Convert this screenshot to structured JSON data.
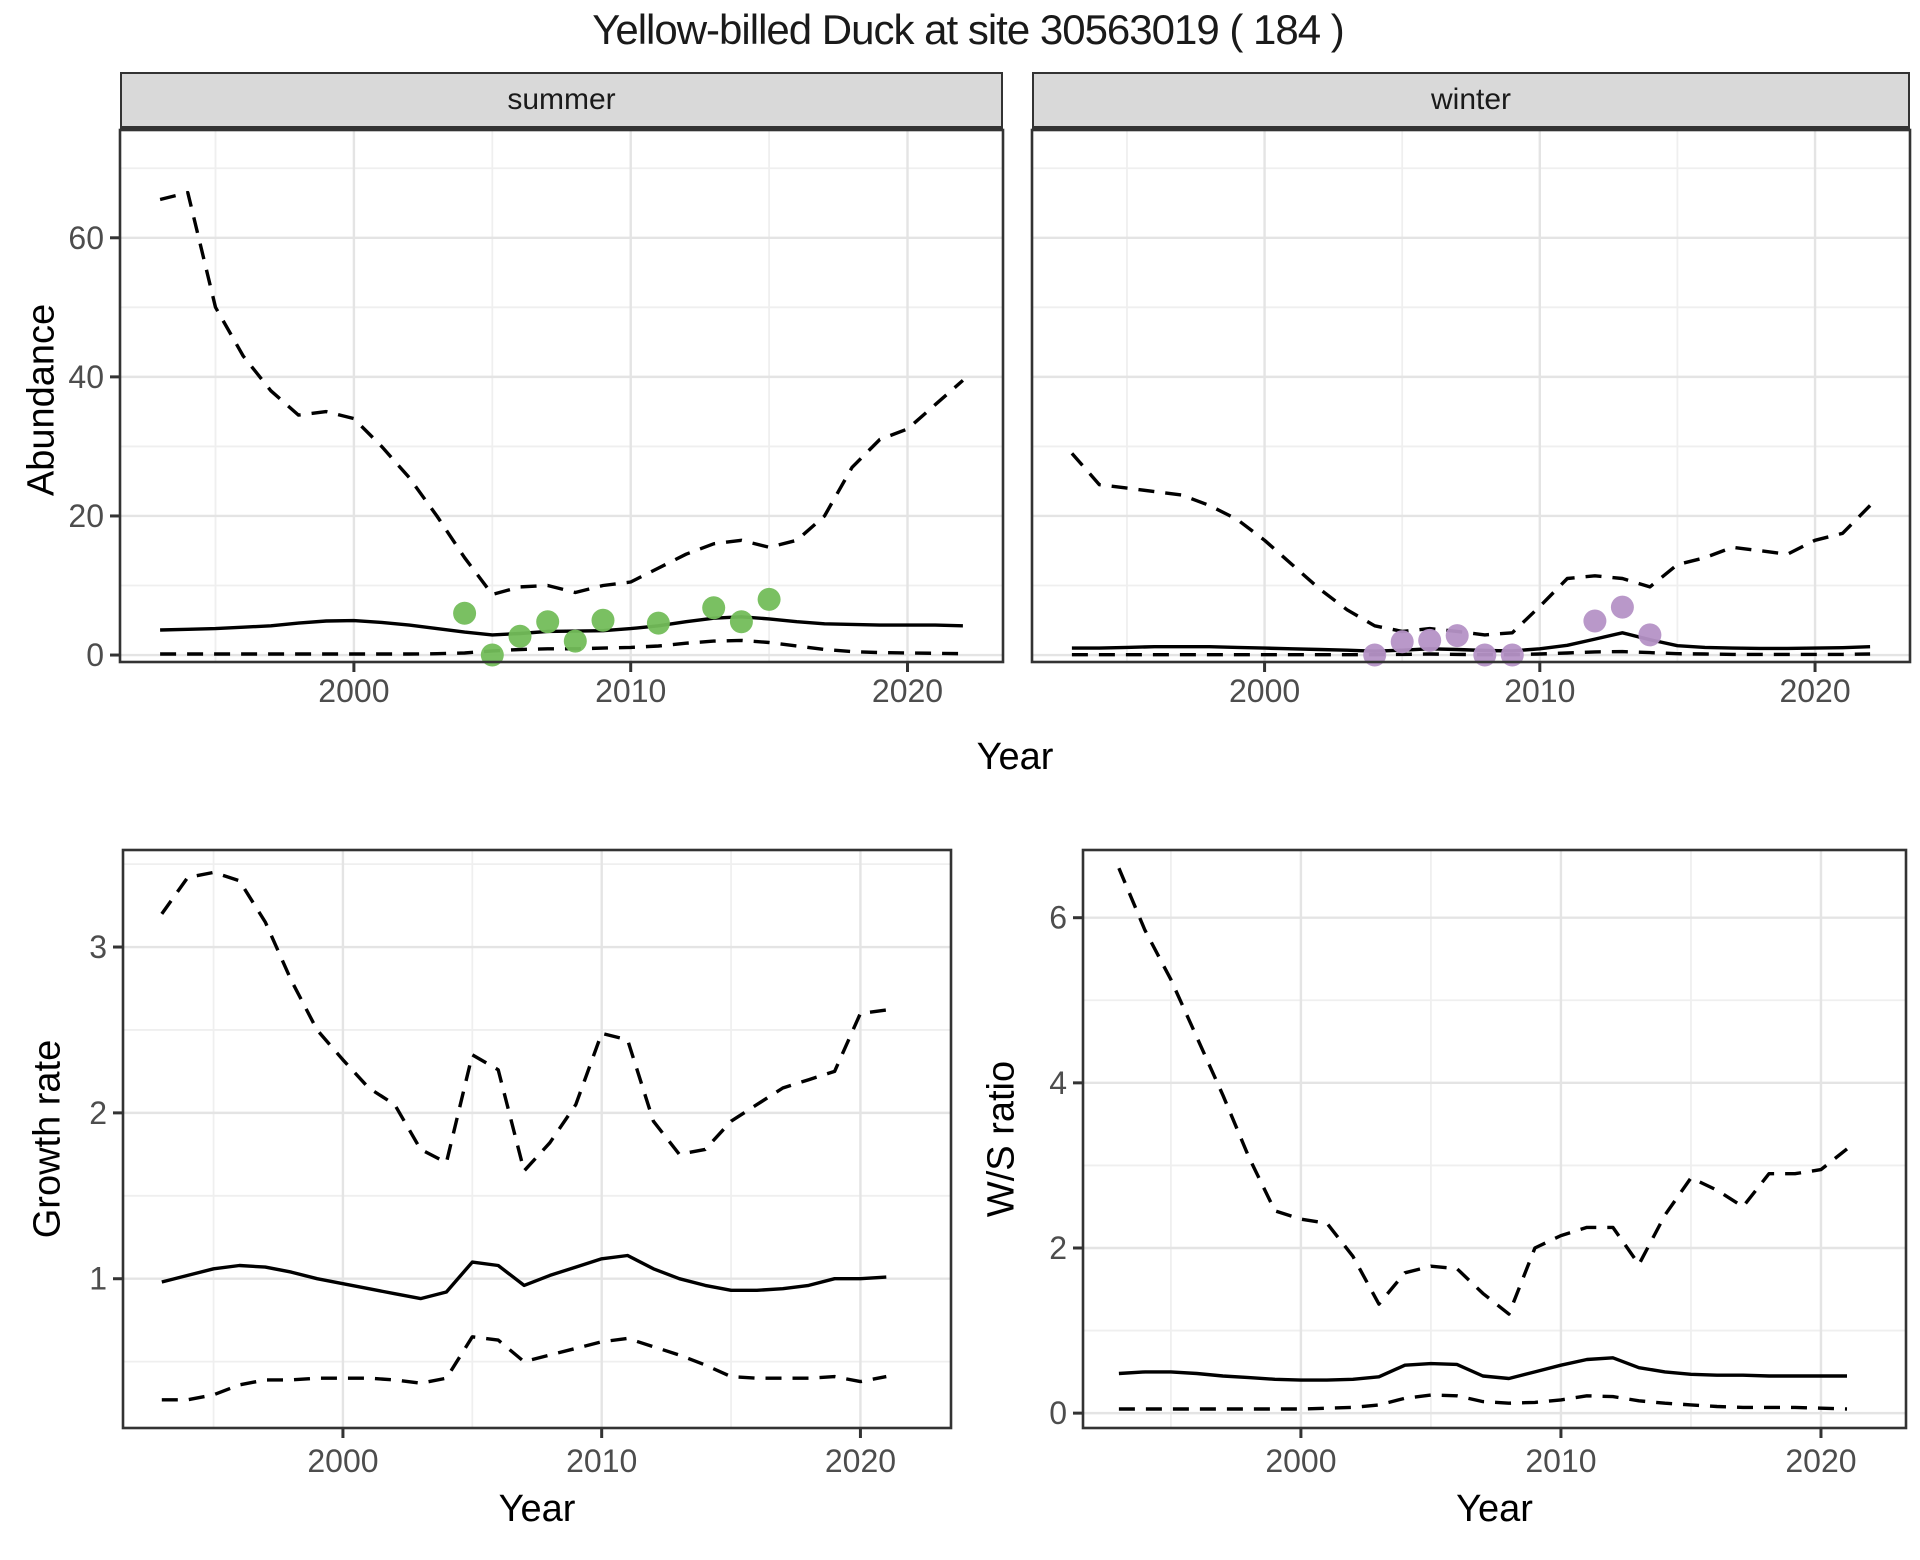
{
  "title": "Yellow-billed Duck at site 30563019 ( 184 )",
  "colors": {
    "background": "#ffffff",
    "line": "#000000",
    "grid_major": "#e4e4e4",
    "grid_minor": "#efefef",
    "strip_bg": "#d9d9d9",
    "panel_border": "#333333",
    "tick": "#333333",
    "tick_label": "#4d4d4d",
    "text": "#1a1a1a",
    "summer_point": "#73bd5a",
    "winter_point": "#b592c6"
  },
  "chart_data": [
    {
      "id": "abundance_summer",
      "type": "line",
      "facet_label": "summer",
      "xlabel": "Year",
      "ylabel": "Abundance",
      "legend_position": "none",
      "grid": true,
      "xlim": [
        1991.55,
        2023.45
      ],
      "ylim": [
        -1,
        75.5
      ],
      "x_major_ticks": [
        2000,
        2010,
        2020
      ],
      "x_minor_ticks": [
        1995,
        2005,
        2015
      ],
      "y_major_ticks": [
        0,
        20,
        40,
        60
      ],
      "y_minor_ticks": [
        10,
        30,
        50,
        70
      ],
      "x": [
        1993,
        1994,
        1995,
        1996,
        1997,
        1998,
        1999,
        2000,
        2001,
        2002,
        2003,
        2004,
        2005,
        2006,
        2007,
        2008,
        2009,
        2010,
        2011,
        2012,
        2013,
        2014,
        2015,
        2016,
        2017,
        2018,
        2019,
        2020,
        2021,
        2022
      ],
      "series": [
        {
          "name": "upper_ci",
          "style": "dashed",
          "values": [
            65.5,
            66.5,
            50,
            43,
            38,
            34.5,
            35,
            34,
            30,
            25.5,
            20,
            14,
            8.7,
            9.8,
            10,
            9,
            10,
            10.5,
            12.5,
            14.5,
            16,
            16.5,
            15.5,
            16.5,
            20,
            27,
            31,
            32.5,
            36,
            39.5
          ]
        },
        {
          "name": "mean",
          "style": "solid",
          "values": [
            3.6,
            3.7,
            3.8,
            4.0,
            4.2,
            4.6,
            4.9,
            4.95,
            4.7,
            4.3,
            3.8,
            3.3,
            2.9,
            3.1,
            3.4,
            3.45,
            3.5,
            3.8,
            4.2,
            4.8,
            5.3,
            5.5,
            5.2,
            4.8,
            4.5,
            4.4,
            4.3,
            4.3,
            4.3,
            4.2
          ]
        },
        {
          "name": "lower_ci",
          "style": "dashed",
          "values": [
            0.15,
            0.15,
            0.15,
            0.15,
            0.15,
            0.15,
            0.15,
            0.15,
            0.15,
            0.15,
            0.2,
            0.3,
            0.6,
            0.8,
            0.9,
            0.9,
            1.0,
            1.1,
            1.3,
            1.7,
            2.0,
            2.1,
            1.8,
            1.3,
            0.8,
            0.5,
            0.35,
            0.3,
            0.25,
            0.2
          ]
        }
      ],
      "points": {
        "name": "observed_counts",
        "color_key": "summer_point",
        "x": [
          2004,
          2005,
          2006,
          2007,
          2008,
          2009,
          2011,
          2013,
          2014,
          2015
        ],
        "y": [
          6,
          0,
          2.7,
          4.8,
          2,
          5,
          4.6,
          6.8,
          4.8,
          8
        ]
      }
    },
    {
      "id": "abundance_winter",
      "type": "line",
      "facet_label": "winter",
      "xlabel": "Year",
      "ylabel": "Abundance",
      "legend_position": "none",
      "grid": true,
      "xlim": [
        1991.55,
        2023.45
      ],
      "ylim": [
        -1,
        75.5
      ],
      "x_major_ticks": [
        2000,
        2010,
        2020
      ],
      "x_minor_ticks": [
        1995,
        2005,
        2015
      ],
      "y_major_ticks": [
        0,
        20,
        40,
        60
      ],
      "y_minor_ticks": [
        10,
        30,
        50,
        70
      ],
      "x": [
        1993,
        1994,
        1995,
        1996,
        1997,
        1998,
        1999,
        2000,
        2001,
        2002,
        2003,
        2004,
        2005,
        2006,
        2007,
        2008,
        2009,
        2010,
        2011,
        2012,
        2013,
        2014,
        2015,
        2016,
        2017,
        2018,
        2019,
        2020,
        2021,
        2022
      ],
      "series": [
        {
          "name": "upper_ci",
          "style": "dashed",
          "values": [
            29,
            24.5,
            24,
            23.5,
            23,
            21.5,
            19.5,
            16.5,
            13,
            9.5,
            6.5,
            4.2,
            3.4,
            3.8,
            3.4,
            2.9,
            3.2,
            7,
            11,
            11.4,
            11,
            9.8,
            13,
            14,
            15.5,
            15,
            14.5,
            16.5,
            17.5,
            21.5
          ]
        },
        {
          "name": "mean",
          "style": "solid",
          "values": [
            1.0,
            1.0,
            1.1,
            1.2,
            1.2,
            1.2,
            1.1,
            1.0,
            0.9,
            0.8,
            0.7,
            0.55,
            0.7,
            0.9,
            0.8,
            0.65,
            0.6,
            0.9,
            1.4,
            2.3,
            3.2,
            2.2,
            1.35,
            1.1,
            1.0,
            0.95,
            0.95,
            1.0,
            1.05,
            1.2
          ]
        },
        {
          "name": "lower_ci",
          "style": "dashed",
          "values": [
            0.05,
            0.05,
            0.05,
            0.05,
            0.05,
            0.05,
            0.05,
            0.05,
            0.05,
            0.05,
            0.05,
            0.05,
            0.1,
            0.15,
            0.1,
            0.05,
            0.05,
            0.15,
            0.3,
            0.45,
            0.5,
            0.35,
            0.2,
            0.15,
            0.1,
            0.1,
            0.1,
            0.1,
            0.1,
            0.15
          ]
        }
      ],
      "points": {
        "name": "observed_counts",
        "color_key": "winter_point",
        "x": [
          2004,
          2005,
          2006,
          2007,
          2008,
          2009,
          2012,
          2013,
          2014
        ],
        "y": [
          0,
          1.9,
          2.1,
          2.8,
          0,
          0,
          4.9,
          6.9,
          2.9
        ]
      }
    },
    {
      "id": "growth_rate",
      "type": "line",
      "facet_label": "",
      "xlabel": "Year",
      "ylabel": "Growth rate",
      "legend_position": "none",
      "grid": true,
      "xlim": [
        1991.5,
        2023.5
      ],
      "ylim": [
        0.1,
        3.585
      ],
      "x_major_ticks": [
        2000,
        2010,
        2020
      ],
      "x_minor_ticks": [
        1995,
        2005,
        2015
      ],
      "y_major_ticks": [
        1,
        2,
        3
      ],
      "y_minor_ticks": [
        0.5,
        1.5,
        2.5,
        3.5
      ],
      "x": [
        1993,
        1994,
        1995,
        1996,
        1997,
        1998,
        1999,
        2000,
        2001,
        2002,
        2003,
        2004,
        2005,
        2006,
        2007,
        2008,
        2009,
        2010,
        2011,
        2012,
        2013,
        2014,
        2015,
        2016,
        2017,
        2018,
        2019,
        2020,
        2021
      ],
      "series": [
        {
          "name": "upper_ci",
          "style": "dashed",
          "values": [
            3.2,
            3.42,
            3.45,
            3.4,
            3.15,
            2.8,
            2.5,
            2.32,
            2.15,
            2.05,
            1.78,
            1.7,
            2.35,
            2.26,
            1.65,
            1.82,
            2.05,
            2.48,
            2.44,
            1.95,
            1.75,
            1.78,
            1.95,
            2.05,
            2.15,
            2.2,
            2.25,
            2.6,
            2.62
          ]
        },
        {
          "name": "mean",
          "style": "solid",
          "values": [
            0.98,
            1.02,
            1.06,
            1.08,
            1.07,
            1.04,
            1.0,
            0.97,
            0.94,
            0.91,
            0.88,
            0.92,
            1.1,
            1.08,
            0.96,
            1.02,
            1.07,
            1.12,
            1.14,
            1.06,
            1.0,
            0.96,
            0.93,
            0.93,
            0.94,
            0.96,
            1.0,
            1.0,
            1.01
          ]
        },
        {
          "name": "lower_ci",
          "style": "dashed",
          "values": [
            0.27,
            0.27,
            0.3,
            0.36,
            0.39,
            0.39,
            0.4,
            0.4,
            0.4,
            0.39,
            0.37,
            0.4,
            0.65,
            0.63,
            0.5,
            0.54,
            0.58,
            0.62,
            0.64,
            0.59,
            0.54,
            0.48,
            0.41,
            0.4,
            0.4,
            0.4,
            0.41,
            0.38,
            0.41
          ]
        }
      ],
      "points": null
    },
    {
      "id": "ws_ratio",
      "type": "line",
      "facet_label": "",
      "xlabel": "Year",
      "ylabel": "W/S ratio",
      "legend_position": "none",
      "grid": true,
      "xlim": [
        1991.62,
        2023.27
      ],
      "ylim": [
        -0.18,
        6.82
      ],
      "x_major_ticks": [
        2000,
        2010,
        2020
      ],
      "x_minor_ticks": [
        1995,
        2005,
        2015
      ],
      "y_major_ticks": [
        0,
        2,
        4,
        6
      ],
      "y_minor_ticks": [
        1,
        3,
        5
      ],
      "x": [
        1993,
        1994,
        1995,
        1996,
        1997,
        1998,
        1999,
        2000,
        2001,
        2002,
        2003,
        2004,
        2005,
        2006,
        2007,
        2008,
        2009,
        2010,
        2011,
        2012,
        2013,
        2014,
        2015,
        2016,
        2017,
        2018,
        2019,
        2020,
        2021
      ],
      "series": [
        {
          "name": "upper_ci",
          "style": "dashed",
          "values": [
            6.6,
            5.85,
            5.25,
            4.55,
            3.85,
            3.1,
            2.45,
            2.35,
            2.3,
            1.9,
            1.32,
            1.7,
            1.78,
            1.75,
            1.45,
            1.2,
            2.0,
            2.15,
            2.25,
            2.25,
            1.8,
            2.4,
            2.85,
            2.7,
            2.5,
            2.9,
            2.9,
            2.95,
            3.2
          ]
        },
        {
          "name": "mean",
          "style": "solid",
          "values": [
            0.48,
            0.5,
            0.5,
            0.48,
            0.45,
            0.43,
            0.41,
            0.4,
            0.4,
            0.41,
            0.44,
            0.58,
            0.6,
            0.59,
            0.45,
            0.42,
            0.5,
            0.58,
            0.65,
            0.67,
            0.55,
            0.5,
            0.47,
            0.46,
            0.46,
            0.45,
            0.45,
            0.45,
            0.45
          ]
        },
        {
          "name": "lower_ci",
          "style": "dashed",
          "values": [
            0.05,
            0.05,
            0.05,
            0.05,
            0.05,
            0.05,
            0.05,
            0.05,
            0.06,
            0.07,
            0.1,
            0.18,
            0.22,
            0.21,
            0.14,
            0.12,
            0.13,
            0.16,
            0.21,
            0.2,
            0.15,
            0.12,
            0.1,
            0.08,
            0.07,
            0.07,
            0.07,
            0.06,
            0.05
          ]
        }
      ],
      "points": null
    }
  ]
}
